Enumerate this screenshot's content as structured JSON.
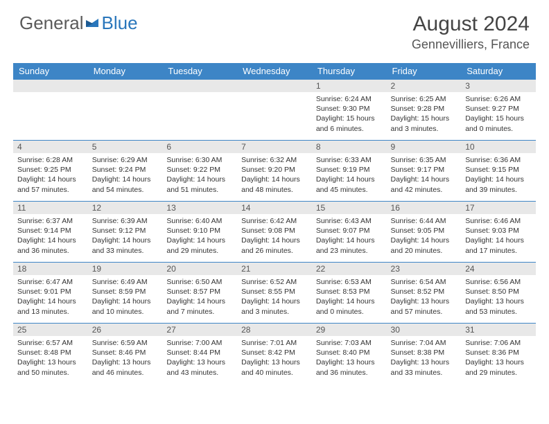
{
  "logo": {
    "general": "General",
    "blue": "Blue"
  },
  "title": "August 2024",
  "location": "Gennevilliers, France",
  "colors": {
    "header_bg": "#3d85c6",
    "header_text": "#ffffff",
    "daynum_bg": "#e8e8e8",
    "border": "#3d85c6",
    "logo_blue": "#2976bb",
    "logo_gray": "#5a5a5a"
  },
  "dayHeaders": [
    "Sunday",
    "Monday",
    "Tuesday",
    "Wednesday",
    "Thursday",
    "Friday",
    "Saturday"
  ],
  "weeks": [
    [
      null,
      null,
      null,
      null,
      {
        "n": "1",
        "sunrise": "6:24 AM",
        "sunset": "9:30 PM",
        "dlh": "15",
        "dlm": "6"
      },
      {
        "n": "2",
        "sunrise": "6:25 AM",
        "sunset": "9:28 PM",
        "dlh": "15",
        "dlm": "3"
      },
      {
        "n": "3",
        "sunrise": "6:26 AM",
        "sunset": "9:27 PM",
        "dlh": "15",
        "dlm": "0"
      }
    ],
    [
      {
        "n": "4",
        "sunrise": "6:28 AM",
        "sunset": "9:25 PM",
        "dlh": "14",
        "dlm": "57"
      },
      {
        "n": "5",
        "sunrise": "6:29 AM",
        "sunset": "9:24 PM",
        "dlh": "14",
        "dlm": "54"
      },
      {
        "n": "6",
        "sunrise": "6:30 AM",
        "sunset": "9:22 PM",
        "dlh": "14",
        "dlm": "51"
      },
      {
        "n": "7",
        "sunrise": "6:32 AM",
        "sunset": "9:20 PM",
        "dlh": "14",
        "dlm": "48"
      },
      {
        "n": "8",
        "sunrise": "6:33 AM",
        "sunset": "9:19 PM",
        "dlh": "14",
        "dlm": "45"
      },
      {
        "n": "9",
        "sunrise": "6:35 AM",
        "sunset": "9:17 PM",
        "dlh": "14",
        "dlm": "42"
      },
      {
        "n": "10",
        "sunrise": "6:36 AM",
        "sunset": "9:15 PM",
        "dlh": "14",
        "dlm": "39"
      }
    ],
    [
      {
        "n": "11",
        "sunrise": "6:37 AM",
        "sunset": "9:14 PM",
        "dlh": "14",
        "dlm": "36"
      },
      {
        "n": "12",
        "sunrise": "6:39 AM",
        "sunset": "9:12 PM",
        "dlh": "14",
        "dlm": "33"
      },
      {
        "n": "13",
        "sunrise": "6:40 AM",
        "sunset": "9:10 PM",
        "dlh": "14",
        "dlm": "29"
      },
      {
        "n": "14",
        "sunrise": "6:42 AM",
        "sunset": "9:08 PM",
        "dlh": "14",
        "dlm": "26"
      },
      {
        "n": "15",
        "sunrise": "6:43 AM",
        "sunset": "9:07 PM",
        "dlh": "14",
        "dlm": "23"
      },
      {
        "n": "16",
        "sunrise": "6:44 AM",
        "sunset": "9:05 PM",
        "dlh": "14",
        "dlm": "20"
      },
      {
        "n": "17",
        "sunrise": "6:46 AM",
        "sunset": "9:03 PM",
        "dlh": "14",
        "dlm": "17"
      }
    ],
    [
      {
        "n": "18",
        "sunrise": "6:47 AM",
        "sunset": "9:01 PM",
        "dlh": "14",
        "dlm": "13"
      },
      {
        "n": "19",
        "sunrise": "6:49 AM",
        "sunset": "8:59 PM",
        "dlh": "14",
        "dlm": "10"
      },
      {
        "n": "20",
        "sunrise": "6:50 AM",
        "sunset": "8:57 PM",
        "dlh": "14",
        "dlm": "7"
      },
      {
        "n": "21",
        "sunrise": "6:52 AM",
        "sunset": "8:55 PM",
        "dlh": "14",
        "dlm": "3"
      },
      {
        "n": "22",
        "sunrise": "6:53 AM",
        "sunset": "8:53 PM",
        "dlh": "14",
        "dlm": "0"
      },
      {
        "n": "23",
        "sunrise": "6:54 AM",
        "sunset": "8:52 PM",
        "dlh": "13",
        "dlm": "57"
      },
      {
        "n": "24",
        "sunrise": "6:56 AM",
        "sunset": "8:50 PM",
        "dlh": "13",
        "dlm": "53"
      }
    ],
    [
      {
        "n": "25",
        "sunrise": "6:57 AM",
        "sunset": "8:48 PM",
        "dlh": "13",
        "dlm": "50"
      },
      {
        "n": "26",
        "sunrise": "6:59 AM",
        "sunset": "8:46 PM",
        "dlh": "13",
        "dlm": "46"
      },
      {
        "n": "27",
        "sunrise": "7:00 AM",
        "sunset": "8:44 PM",
        "dlh": "13",
        "dlm": "43"
      },
      {
        "n": "28",
        "sunrise": "7:01 AM",
        "sunset": "8:42 PM",
        "dlh": "13",
        "dlm": "40"
      },
      {
        "n": "29",
        "sunrise": "7:03 AM",
        "sunset": "8:40 PM",
        "dlh": "13",
        "dlm": "36"
      },
      {
        "n": "30",
        "sunrise": "7:04 AM",
        "sunset": "8:38 PM",
        "dlh": "13",
        "dlm": "33"
      },
      {
        "n": "31",
        "sunrise": "7:06 AM",
        "sunset": "8:36 PM",
        "dlh": "13",
        "dlm": "29"
      }
    ]
  ]
}
